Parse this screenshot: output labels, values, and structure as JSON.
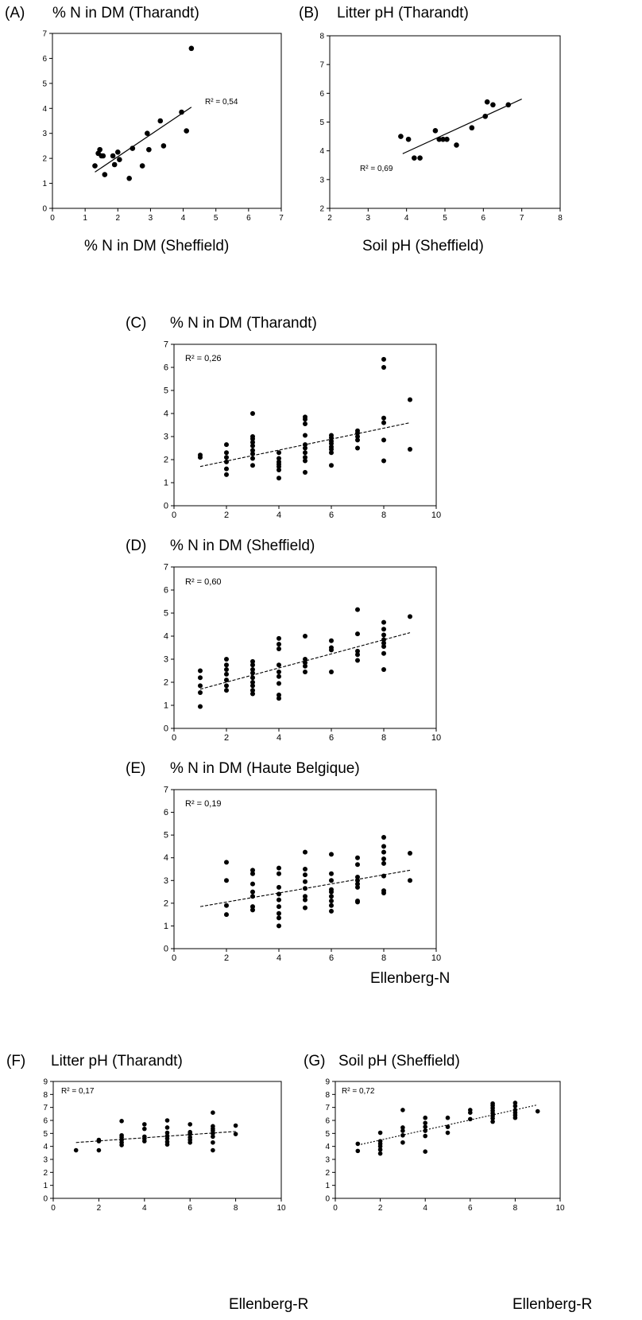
{
  "chart_data": [
    {
      "id": "A",
      "type": "scatter",
      "panel_label": "(A)",
      "title": "% N in DM (Tharandt)",
      "xlabel": "% N in DM (Sheffield)",
      "ylabel": "",
      "xlim": [
        0,
        7
      ],
      "ylim": [
        0,
        7
      ],
      "xticks": [
        "0",
        "1",
        "2",
        "3",
        "4",
        "5",
        "6",
        "7"
      ],
      "yticks": [
        "0",
        "1",
        "2",
        "3",
        "4",
        "5",
        "6",
        "7"
      ],
      "points": [
        [
          1.3,
          1.7
        ],
        [
          1.4,
          2.2
        ],
        [
          1.45,
          2.35
        ],
        [
          1.5,
          2.1
        ],
        [
          1.55,
          2.1
        ],
        [
          1.6,
          1.35
        ],
        [
          1.85,
          2.1
        ],
        [
          1.9,
          1.75
        ],
        [
          2.0,
          2.25
        ],
        [
          2.05,
          1.95
        ],
        [
          2.35,
          1.2
        ],
        [
          2.45,
          2.4
        ],
        [
          2.75,
          1.7
        ],
        [
          2.9,
          3.0
        ],
        [
          2.95,
          2.35
        ],
        [
          3.3,
          3.5
        ],
        [
          3.4,
          2.5
        ],
        [
          3.95,
          3.85
        ],
        [
          4.1,
          3.1
        ],
        [
          4.25,
          6.4
        ]
      ],
      "trend": {
        "style": "solid",
        "from": [
          1.3,
          1.45
        ],
        "to": [
          4.25,
          4.05
        ]
      },
      "r2_text": "R² = 0,54",
      "r2_value": 0.54
    },
    {
      "id": "B",
      "type": "scatter",
      "panel_label": "(B)",
      "title": "Litter pH (Tharandt)",
      "xlabel": "Soil pH (Sheffield)",
      "ylabel": "",
      "xlim": [
        2,
        8
      ],
      "ylim": [
        2,
        8
      ],
      "xticks": [
        "2",
        "3",
        "4",
        "5",
        "6",
        "7",
        "8"
      ],
      "yticks": [
        "2",
        "3",
        "4",
        "5",
        "6",
        "7",
        "8"
      ],
      "points": [
        [
          3.85,
          4.5
        ],
        [
          4.05,
          4.4
        ],
        [
          4.2,
          3.75
        ],
        [
          4.35,
          3.75
        ],
        [
          4.75,
          4.7
        ],
        [
          4.85,
          4.4
        ],
        [
          4.95,
          4.4
        ],
        [
          5.05,
          4.4
        ],
        [
          5.3,
          4.2
        ],
        [
          5.7,
          4.8
        ],
        [
          6.05,
          5.2
        ],
        [
          6.1,
          5.7
        ],
        [
          6.25,
          5.6
        ],
        [
          6.65,
          5.6
        ]
      ],
      "trend": {
        "style": "solid",
        "from": [
          3.9,
          3.9
        ],
        "to": [
          7.0,
          5.8
        ]
      },
      "r2_text": "R² = 0,69",
      "r2_value": 0.69
    },
    {
      "id": "C",
      "type": "scatter",
      "panel_label": "(C)",
      "title": "% N in DM (Tharandt)",
      "xlabel": "",
      "ylabel": "",
      "xlim": [
        0,
        10
      ],
      "ylim": [
        0,
        7
      ],
      "xticks": [
        "0",
        "2",
        "4",
        "6",
        "8",
        "10"
      ],
      "yticks": [
        "0",
        "1",
        "2",
        "3",
        "4",
        "5",
        "6",
        "7"
      ],
      "points": [
        [
          1,
          2.1
        ],
        [
          1,
          2.2
        ],
        [
          2,
          1.35
        ],
        [
          2,
          1.6
        ],
        [
          2,
          1.9
        ],
        [
          2,
          2.1
        ],
        [
          2,
          2.3
        ],
        [
          2,
          2.65
        ],
        [
          3,
          1.75
        ],
        [
          3,
          2.05
        ],
        [
          3,
          2.25
        ],
        [
          3,
          2.4
        ],
        [
          3,
          2.6
        ],
        [
          3,
          2.75
        ],
        [
          3,
          2.9
        ],
        [
          3,
          3.0
        ],
        [
          3,
          4.0
        ],
        [
          4,
          1.2
        ],
        [
          4,
          1.55
        ],
        [
          4,
          1.7
        ],
        [
          4,
          1.8
        ],
        [
          4,
          1.9
        ],
        [
          4,
          2.05
        ],
        [
          4,
          2.3
        ],
        [
          5,
          1.45
        ],
        [
          5,
          1.95
        ],
        [
          5,
          2.1
        ],
        [
          5,
          2.3
        ],
        [
          5,
          2.5
        ],
        [
          5,
          2.65
        ],
        [
          5,
          3.05
        ],
        [
          5,
          3.55
        ],
        [
          5,
          3.75
        ],
        [
          5,
          3.85
        ],
        [
          6,
          1.75
        ],
        [
          6,
          2.3
        ],
        [
          6,
          2.45
        ],
        [
          6,
          2.55
        ],
        [
          6,
          2.7
        ],
        [
          6,
          2.8
        ],
        [
          6,
          2.95
        ],
        [
          6,
          3.05
        ],
        [
          7,
          2.5
        ],
        [
          7,
          2.85
        ],
        [
          7,
          3.0
        ],
        [
          7,
          3.15
        ],
        [
          7,
          3.25
        ],
        [
          8,
          1.95
        ],
        [
          8,
          2.85
        ],
        [
          8,
          3.6
        ],
        [
          8,
          3.8
        ],
        [
          8,
          6.0
        ],
        [
          8,
          6.35
        ],
        [
          9,
          2.45
        ],
        [
          9,
          4.6
        ]
      ],
      "trend": {
        "style": "dashed",
        "from": [
          1,
          1.7
        ],
        "to": [
          9,
          3.6
        ]
      },
      "r2_text": "R² = 0,26",
      "r2_value": 0.26
    },
    {
      "id": "D",
      "type": "scatter",
      "panel_label": "(D)",
      "title": "% N in DM (Sheffield)",
      "xlabel": "",
      "ylabel": "",
      "xlim": [
        0,
        10
      ],
      "ylim": [
        0,
        7
      ],
      "xticks": [
        "0",
        "2",
        "4",
        "6",
        "8",
        "10"
      ],
      "yticks": [
        "0",
        "1",
        "2",
        "3",
        "4",
        "5",
        "6",
        "7"
      ],
      "points": [
        [
          1,
          0.95
        ],
        [
          1,
          1.55
        ],
        [
          1,
          1.85
        ],
        [
          1,
          2.2
        ],
        [
          1,
          2.5
        ],
        [
          2,
          1.65
        ],
        [
          2,
          1.85
        ],
        [
          2,
          2.1
        ],
        [
          2,
          2.35
        ],
        [
          2,
          2.55
        ],
        [
          2,
          2.75
        ],
        [
          2,
          3.0
        ],
        [
          3,
          1.5
        ],
        [
          3,
          1.65
        ],
        [
          3,
          1.85
        ],
        [
          3,
          2.0
        ],
        [
          3,
          2.2
        ],
        [
          3,
          2.4
        ],
        [
          3,
          2.55
        ],
        [
          3,
          2.75
        ],
        [
          3,
          2.9
        ],
        [
          4,
          1.3
        ],
        [
          4,
          1.45
        ],
        [
          4,
          1.95
        ],
        [
          4,
          2.25
        ],
        [
          4,
          2.45
        ],
        [
          4,
          2.75
        ],
        [
          4,
          3.45
        ],
        [
          4,
          3.65
        ],
        [
          4,
          3.9
        ],
        [
          5,
          2.45
        ],
        [
          5,
          2.7
        ],
        [
          5,
          2.85
        ],
        [
          5,
          3.0
        ],
        [
          5,
          4.0
        ],
        [
          6,
          2.45
        ],
        [
          6,
          3.4
        ],
        [
          6,
          3.5
        ],
        [
          6,
          3.8
        ],
        [
          7,
          2.95
        ],
        [
          7,
          3.2
        ],
        [
          7,
          3.35
        ],
        [
          7,
          4.1
        ],
        [
          7,
          5.15
        ],
        [
          8,
          2.55
        ],
        [
          8,
          3.25
        ],
        [
          8,
          3.55
        ],
        [
          8,
          3.7
        ],
        [
          8,
          3.85
        ],
        [
          8,
          4.05
        ],
        [
          8,
          4.3
        ],
        [
          8,
          4.6
        ],
        [
          9,
          4.85
        ]
      ],
      "trend": {
        "style": "dashed",
        "from": [
          1,
          1.7
        ],
        "to": [
          9,
          4.15
        ]
      },
      "r2_text": "R² = 0,60",
      "r2_value": 0.6
    },
    {
      "id": "E",
      "type": "scatter",
      "panel_label": "(E)",
      "title": "% N in DM (Haute Belgique)",
      "xlabel": "Ellenberg-N",
      "ylabel": "",
      "xlim": [
        0,
        10
      ],
      "ylim": [
        0,
        7
      ],
      "xticks": [
        "0",
        "2",
        "4",
        "6",
        "8",
        "10"
      ],
      "yticks": [
        "0",
        "1",
        "2",
        "3",
        "4",
        "5",
        "6",
        "7"
      ],
      "points": [
        [
          2,
          1.5
        ],
        [
          2,
          1.9
        ],
        [
          2,
          3.0
        ],
        [
          2,
          3.8
        ],
        [
          3,
          1.7
        ],
        [
          3,
          1.85
        ],
        [
          3,
          2.3
        ],
        [
          3,
          2.5
        ],
        [
          3,
          2.85
        ],
        [
          3,
          3.3
        ],
        [
          3,
          3.45
        ],
        [
          4,
          1.0
        ],
        [
          4,
          1.35
        ],
        [
          4,
          1.55
        ],
        [
          4,
          1.85
        ],
        [
          4,
          2.15
        ],
        [
          4,
          2.4
        ],
        [
          4,
          2.7
        ],
        [
          4,
          3.3
        ],
        [
          4,
          3.55
        ],
        [
          5,
          1.8
        ],
        [
          5,
          2.15
        ],
        [
          5,
          2.3
        ],
        [
          5,
          2.65
        ],
        [
          5,
          2.95
        ],
        [
          5,
          3.25
        ],
        [
          5,
          3.5
        ],
        [
          5,
          4.25
        ],
        [
          6,
          1.65
        ],
        [
          6,
          1.9
        ],
        [
          6,
          2.1
        ],
        [
          6,
          2.3
        ],
        [
          6,
          2.5
        ],
        [
          6,
          2.6
        ],
        [
          6,
          3.0
        ],
        [
          6,
          3.3
        ],
        [
          6,
          4.15
        ],
        [
          7,
          2.05
        ],
        [
          7,
          2.1
        ],
        [
          7,
          2.7
        ],
        [
          7,
          2.85
        ],
        [
          7,
          3.0
        ],
        [
          7,
          3.15
        ],
        [
          7,
          3.7
        ],
        [
          7,
          4.0
        ],
        [
          8,
          2.45
        ],
        [
          8,
          2.55
        ],
        [
          8,
          3.2
        ],
        [
          8,
          3.75
        ],
        [
          8,
          3.95
        ],
        [
          8,
          4.25
        ],
        [
          8,
          4.5
        ],
        [
          8,
          4.9
        ],
        [
          9,
          3.0
        ],
        [
          9,
          4.2
        ]
      ],
      "trend": {
        "style": "dashed",
        "from": [
          1,
          1.85
        ],
        "to": [
          9,
          3.45
        ]
      },
      "r2_text": "R² = 0,19",
      "r2_value": 0.19
    },
    {
      "id": "F",
      "type": "scatter",
      "panel_label": "(F)",
      "title": "Litter pH (Tharandt)",
      "xlabel": "Ellenberg-R",
      "ylabel": "",
      "xlim": [
        0,
        10
      ],
      "ylim": [
        0,
        9
      ],
      "xticks": [
        "0",
        "2",
        "4",
        "6",
        "8",
        "10"
      ],
      "yticks": [
        "0",
        "1",
        "2",
        "3",
        "4",
        "5",
        "6",
        "7",
        "8",
        "9"
      ],
      "points": [
        [
          1,
          3.7
        ],
        [
          2,
          3.7
        ],
        [
          2,
          4.4
        ],
        [
          2,
          4.5
        ],
        [
          3,
          4.1
        ],
        [
          3,
          4.3
        ],
        [
          3,
          4.5
        ],
        [
          3,
          4.7
        ],
        [
          3,
          4.85
        ],
        [
          3,
          5.95
        ],
        [
          4,
          4.4
        ],
        [
          4,
          4.6
        ],
        [
          4,
          4.75
        ],
        [
          4,
          5.35
        ],
        [
          4,
          5.7
        ],
        [
          5,
          4.15
        ],
        [
          5,
          4.35
        ],
        [
          5,
          4.6
        ],
        [
          5,
          4.8
        ],
        [
          5,
          5.05
        ],
        [
          5,
          5.45
        ],
        [
          5,
          6.0
        ],
        [
          6,
          4.3
        ],
        [
          6,
          4.5
        ],
        [
          6,
          4.7
        ],
        [
          6,
          4.95
        ],
        [
          6,
          5.1
        ],
        [
          6,
          5.7
        ],
        [
          7,
          3.7
        ],
        [
          7,
          4.3
        ],
        [
          7,
          4.75
        ],
        [
          7,
          5.0
        ],
        [
          7,
          5.2
        ],
        [
          7,
          5.35
        ],
        [
          7,
          5.55
        ],
        [
          7,
          6.6
        ],
        [
          8,
          4.95
        ],
        [
          8,
          5.6
        ]
      ],
      "trend": {
        "style": "dashed",
        "from": [
          1,
          4.3
        ],
        "to": [
          8,
          5.15
        ]
      },
      "r2_text": "R² = 0,17",
      "r2_value": 0.17
    },
    {
      "id": "G",
      "type": "scatter",
      "panel_label": "(G)",
      "title": "Soil pH (Sheffield)",
      "xlabel": "Ellenberg-R",
      "ylabel": "",
      "xlim": [
        0,
        10
      ],
      "ylim": [
        0,
        9
      ],
      "xticks": [
        "0",
        "2",
        "4",
        "6",
        "8",
        "10"
      ],
      "yticks": [
        "0",
        "1",
        "2",
        "3",
        "4",
        "5",
        "6",
        "7",
        "8",
        "9"
      ],
      "points": [
        [
          1,
          3.65
        ],
        [
          1,
          4.2
        ],
        [
          2,
          3.45
        ],
        [
          2,
          3.75
        ],
        [
          2,
          4.0
        ],
        [
          2,
          4.2
        ],
        [
          2,
          4.4
        ],
        [
          2,
          5.05
        ],
        [
          3,
          4.3
        ],
        [
          3,
          4.85
        ],
        [
          3,
          5.2
        ],
        [
          3,
          5.45
        ],
        [
          3,
          6.8
        ],
        [
          4,
          3.6
        ],
        [
          4,
          4.8
        ],
        [
          4,
          5.2
        ],
        [
          4,
          5.5
        ],
        [
          4,
          5.8
        ],
        [
          4,
          6.2
        ],
        [
          5,
          5.05
        ],
        [
          5,
          5.5
        ],
        [
          5,
          6.2
        ],
        [
          6,
          6.1
        ],
        [
          6,
          6.6
        ],
        [
          6,
          6.8
        ],
        [
          7,
          5.9
        ],
        [
          7,
          6.15
        ],
        [
          7,
          6.35
        ],
        [
          7,
          6.55
        ],
        [
          7,
          6.75
        ],
        [
          7,
          6.95
        ],
        [
          7,
          7.15
        ],
        [
          7,
          7.3
        ],
        [
          8,
          6.2
        ],
        [
          8,
          6.4
        ],
        [
          8,
          6.6
        ],
        [
          8,
          6.8
        ],
        [
          8,
          7.1
        ],
        [
          8,
          7.35
        ],
        [
          9,
          6.7
        ]
      ],
      "trend": {
        "style": "dotted",
        "from": [
          1,
          4.1
        ],
        "to": [
          9,
          7.2
        ]
      },
      "r2_text": "R² = 0,72",
      "r2_value": 0.72
    }
  ]
}
